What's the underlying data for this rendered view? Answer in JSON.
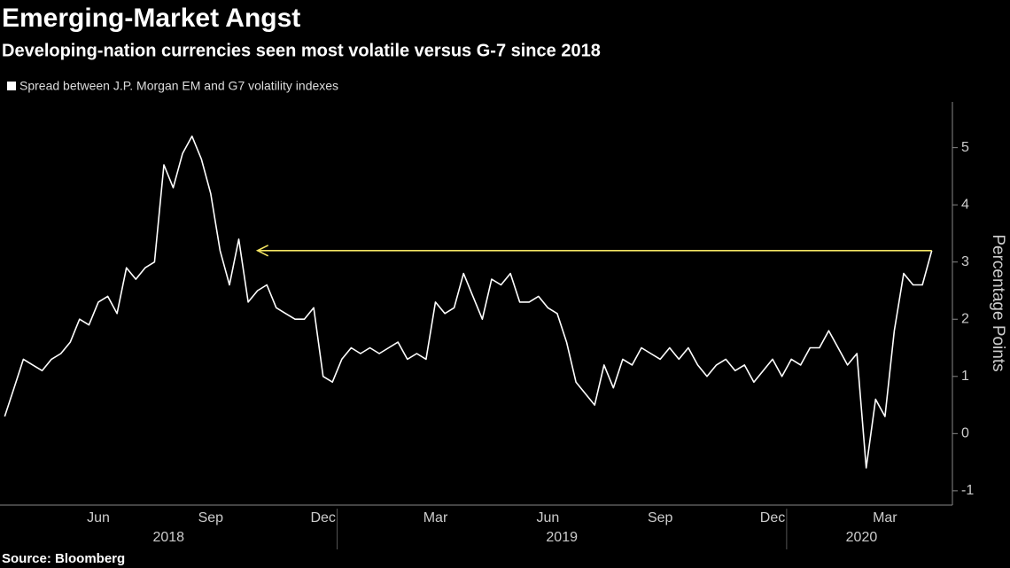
{
  "chart_data": {
    "type": "line",
    "title": "Emerging-Market Angst",
    "subtitle": "Developing-nation currencies seen most volatile versus G-7 since 2018",
    "y_axis_label": "Percentage Points",
    "source": "Source: Bloomberg",
    "categories": [
      null,
      null,
      null,
      null,
      null,
      null,
      null,
      null,
      null,
      null,
      "Jun",
      null,
      null,
      null,
      null,
      null,
      null,
      null,
      null,
      null,
      null,
      null,
      "Sep",
      null,
      null,
      null,
      null,
      null,
      null,
      null,
      null,
      null,
      null,
      null,
      "Dec",
      null,
      null,
      null,
      null,
      null,
      null,
      null,
      null,
      null,
      null,
      null,
      "Mar",
      null,
      null,
      null,
      null,
      null,
      null,
      null,
      null,
      null,
      null,
      null,
      "Jun",
      null,
      null,
      null,
      null,
      null,
      null,
      null,
      null,
      null,
      null,
      null,
      "Sep",
      null,
      null,
      null,
      null,
      null,
      null,
      null,
      null,
      null,
      null,
      null,
      "Dec",
      null,
      null,
      null,
      null,
      null,
      null,
      null,
      null,
      null,
      null,
      null,
      "Mar",
      null,
      null,
      null,
      null,
      null
    ],
    "x_groups": [
      {
        "label": "2018",
        "start": 0,
        "end": 35
      },
      {
        "label": "2019",
        "start": 36,
        "end": 83
      },
      {
        "label": "2020",
        "start": 84,
        "end": 99
      }
    ],
    "series": [
      {
        "name": "Spread between J.P. Morgan EM and G7 volatility indexes",
        "color": "#ffffff",
        "values": [
          0.3,
          0.8,
          1.3,
          1.2,
          1.1,
          1.3,
          1.4,
          1.6,
          2.0,
          1.9,
          2.3,
          2.4,
          2.1,
          2.9,
          2.7,
          2.9,
          3.0,
          4.7,
          4.3,
          4.9,
          5.2,
          4.8,
          4.2,
          3.2,
          2.6,
          3.4,
          2.3,
          2.5,
          2.6,
          2.2,
          2.1,
          2.0,
          2.0,
          2.2,
          1.0,
          0.9,
          1.3,
          1.5,
          1.4,
          1.5,
          1.4,
          1.5,
          1.6,
          1.3,
          1.4,
          1.3,
          2.3,
          2.1,
          2.2,
          2.8,
          2.4,
          2.0,
          2.7,
          2.6,
          2.8,
          2.3,
          2.3,
          2.4,
          2.2,
          2.1,
          1.6,
          0.9,
          0.7,
          0.5,
          1.2,
          0.8,
          1.3,
          1.2,
          1.5,
          1.4,
          1.3,
          1.5,
          1.3,
          1.5,
          1.2,
          1.0,
          1.2,
          1.3,
          1.1,
          1.2,
          0.9,
          1.1,
          1.3,
          1.0,
          1.3,
          1.2,
          1.5,
          1.5,
          1.8,
          1.5,
          1.2,
          1.4,
          -0.6,
          0.6,
          0.3,
          1.8,
          2.8,
          2.6,
          2.6,
          3.2
        ]
      }
    ],
    "reference_arrow": {
      "value": 3.2,
      "start": 99,
      "end": 27,
      "color": "#f5e663"
    },
    "ylim": [
      -1.25,
      5.8
    ],
    "yticks": [
      -1,
      0,
      1,
      2,
      3,
      4,
      5
    ]
  }
}
